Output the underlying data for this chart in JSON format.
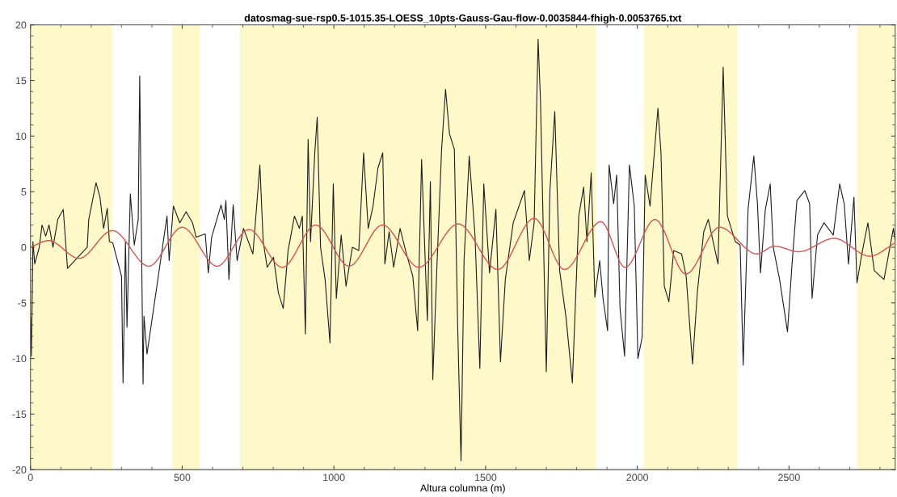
{
  "chart_data": {
    "type": "line",
    "title": "datosmag-sue-rsp0.5-1015.35-LOESS_10pts-Gauss-Gau-flow-0.0035844-fhigh-0.0053765.txt",
    "xlabel": "Altura columna (m)",
    "xlim": [
      0,
      2850
    ],
    "ylim": [
      -20,
      20
    ],
    "xticks": [
      0,
      500,
      1000,
      1500,
      2000,
      2500
    ],
    "yticks": [
      -20,
      -15,
      -10,
      -5,
      0,
      5,
      10,
      15,
      20
    ],
    "grid": false,
    "legend": false,
    "line_style": "solid",
    "marker": "none",
    "bands": [
      {
        "axis": "x",
        "from": 0,
        "to": 269,
        "color": "#fff8c8"
      },
      {
        "axis": "x",
        "from": 466,
        "to": 559,
        "color": "#fff8c8"
      },
      {
        "axis": "x",
        "from": 690,
        "to": 1864,
        "color": "#fff8c8"
      },
      {
        "axis": "x",
        "from": 2021,
        "to": 2330,
        "color": "#fff8c8"
      },
      {
        "axis": "x",
        "from": 2724,
        "to": 2850,
        "color": "#fff8c8"
      }
    ],
    "series": [
      {
        "color": "#1e1e1e",
        "x": [
          0,
          3,
          8,
          14,
          29,
          38,
          50,
          61,
          74,
          90,
          108,
          122,
          187,
          192,
          216,
          229,
          241,
          253,
          260,
          271,
          300,
          305,
          313,
          318,
          329,
          342,
          355,
          360,
          371,
          374,
          384,
          450,
          457,
          471,
          492,
          513,
          534,
          546,
          576,
          586,
          597,
          628,
          639,
          644,
          654,
          668,
          681,
          702,
          733,
          756,
          767,
          780,
          801,
          817,
          833,
          849,
          870,
          886,
          896,
          906,
          915,
          923,
          937,
          945,
          956,
          971,
          987,
          998,
          1008,
          1024,
          1040,
          1061,
          1082,
          1098,
          1113,
          1129,
          1145,
          1161,
          1168,
          1182,
          1197,
          1218,
          1239,
          1260,
          1276,
          1289,
          1308,
          1318,
          1326,
          1339,
          1355,
          1368,
          1381,
          1397,
          1408,
          1419,
          1429,
          1446,
          1465,
          1481,
          1494,
          1513,
          1534,
          1549,
          1565,
          1591,
          1628,
          1644,
          1660,
          1673,
          1681,
          1700,
          1712,
          1728,
          1744,
          1765,
          1786,
          1807,
          1823,
          1834,
          1848,
          1860,
          1876,
          1887,
          1902,
          1907,
          1922,
          1932,
          1943,
          1958,
          1974,
          1990,
          2002,
          2016,
          2026,
          2042,
          2057,
          2068,
          2078,
          2089,
          2104,
          2120,
          2146,
          2161,
          2182,
          2198,
          2219,
          2234,
          2266,
          2283,
          2297,
          2323,
          2339,
          2349,
          2365,
          2384,
          2396,
          2406,
          2422,
          2438,
          2448,
          2469,
          2495,
          2510,
          2526,
          2552,
          2568,
          2576,
          2594,
          2615,
          2646,
          2667,
          2682,
          2696,
          2714,
          2724,
          2740,
          2760,
          2781,
          2813,
          2844,
          2850
        ],
        "values": [
          -6.3,
          -9.8,
          0.5,
          -1.5,
          0,
          2,
          1,
          2,
          0,
          2.5,
          3.4,
          -1.9,
          0,
          2.5,
          5.8,
          4.5,
          1.7,
          3.5,
          0.5,
          0.4,
          -2.6,
          -12.2,
          0.5,
          -7.2,
          4.8,
          0.2,
          2.5,
          15.4,
          -12.3,
          -6.2,
          -9.6,
          2.8,
          -1.2,
          3.7,
          2.2,
          3.2,
          2.2,
          0.9,
          1.2,
          -2.3,
          0.9,
          3.8,
          2.5,
          4.2,
          -2.9,
          3.8,
          -1.2,
          1.7,
          -0.6,
          7.4,
          0.5,
          -1.8,
          -0.9,
          -4.1,
          -5.5,
          -0.3,
          2.8,
          1.7,
          2.8,
          -7.8,
          9.7,
          0.5,
          8.5,
          11.7,
          0,
          -2.9,
          -8.6,
          5.7,
          -4.6,
          1.1,
          -3.5,
          0,
          -0.3,
          8.5,
          1.7,
          3.7,
          7.1,
          8.5,
          -1.5,
          1.4,
          -1.8,
          1.7,
          -0.6,
          -2.6,
          -7.5,
          7.9,
          -6.6,
          5.9,
          -11.9,
          -2.1,
          8.8,
          14.2,
          10.2,
          8.8,
          -7.2,
          -19.2,
          -1.2,
          8.2,
          1.1,
          -10.9,
          5.7,
          -2.3,
          3.4,
          -10.3,
          -2.9,
          2.2,
          5.1,
          -1.2,
          2.2,
          18.7,
          13.1,
          -11.2,
          5.1,
          12.2,
          -2.1,
          -6.3,
          -12.2,
          2.8,
          5.4,
          0.5,
          6.7,
          -4.5,
          -1.2,
          -4.6,
          -7.5,
          7.4,
          3.9,
          6.5,
          -5.5,
          -9.8,
          7.4,
          3.7,
          -10,
          -8.1,
          6.5,
          3.7,
          8.8,
          12.5,
          8.5,
          -3.5,
          -4.9,
          -0.3,
          -0.6,
          -2.6,
          -10.5,
          -4,
          1.4,
          2.5,
          -1.5,
          16.2,
          2.8,
          0.5,
          0.2,
          -10.6,
          3.4,
          8.2,
          3.9,
          -2.3,
          3.4,
          5.7,
          0,
          -2.9,
          -7.6,
          -1.5,
          4.2,
          5.1,
          3.9,
          -4.6,
          1.1,
          2.2,
          1.1,
          5.7,
          3.9,
          -1.5,
          4.5,
          -3.2,
          -0.6,
          2.2,
          -2.1,
          -2.9,
          1.7,
          0.5
        ]
      },
      {
        "color": "#d9534f",
        "x": [
          0,
          60,
          160,
          270,
          390,
          500,
          615,
          720,
          830,
          940,
          1050,
          1160,
          1280,
          1410,
          1540,
          1660,
          1760,
          1880,
          1960,
          2058,
          2160,
          2271,
          2394,
          2452,
          2532,
          2649,
          2766,
          2850
        ],
        "values": [
          0,
          0.6,
          -1.0,
          1.5,
          -1.7,
          1.8,
          -1.7,
          1.6,
          -1.8,
          2.0,
          -1.7,
          2.0,
          -1.8,
          2.1,
          -2.0,
          2.6,
          -2.0,
          2.3,
          -1.8,
          2.5,
          -2.4,
          1.8,
          -0.6,
          0.1,
          -0.4,
          0.8,
          -0.8,
          0.4
        ]
      }
    ]
  }
}
